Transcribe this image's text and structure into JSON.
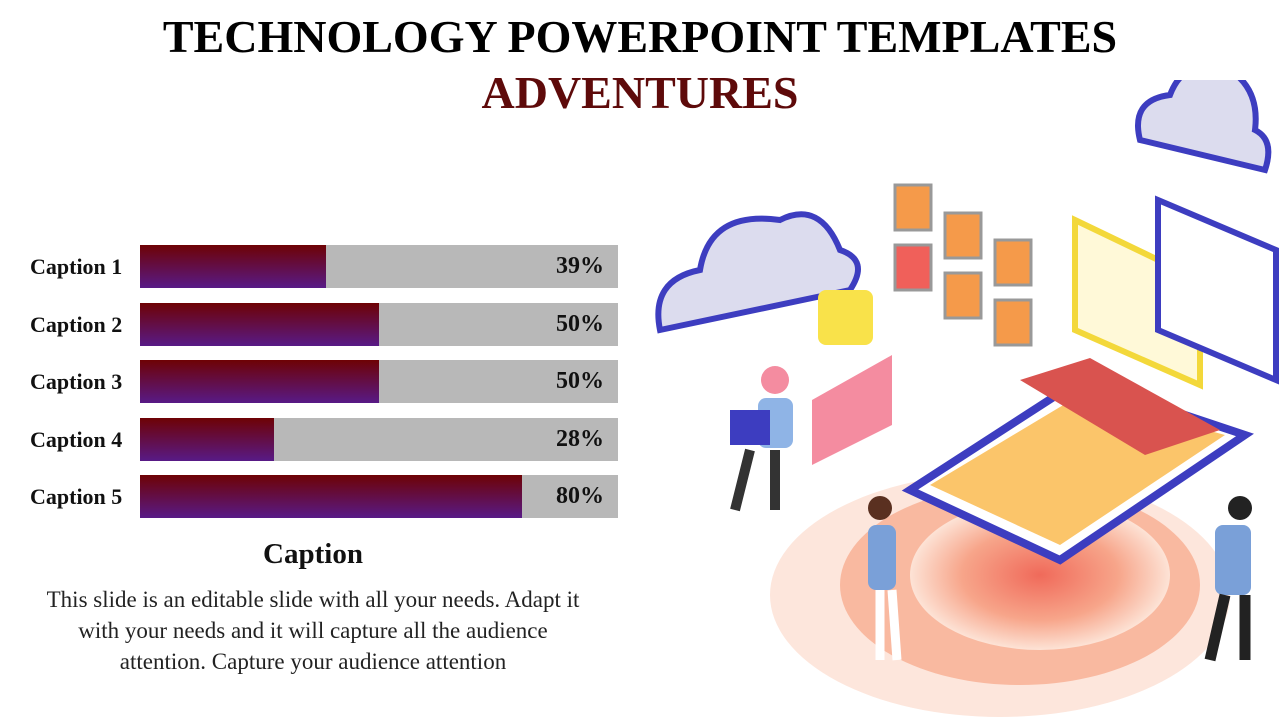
{
  "slide": {
    "title_line1": "TECHNOLOGY POWERPOINT TEMPLATES",
    "title_line2": "ADVENTURES",
    "caption_heading": "Caption",
    "caption_body": "This slide is an editable slide with all your needs. Adapt it with your needs and it will capture all the audience attention. Capture your audience attention"
  },
  "colors": {
    "title": "#000000",
    "subtitle": "#5e0a0a",
    "bar_top": "#6e0205",
    "bar_bottom": "#581a87",
    "track": "#b8b8b8"
  },
  "chart_data": {
    "type": "bar",
    "orientation": "horizontal",
    "categories": [
      "Caption 1",
      "Caption 2",
      "Caption 3",
      "Caption 4",
      "Caption 5"
    ],
    "values": [
      39,
      50,
      50,
      28,
      80
    ],
    "labels": [
      "39%",
      "50%",
      "50%",
      "28%",
      "80%"
    ],
    "xlim": [
      0,
      100
    ],
    "grid": false
  },
  "illustration": {
    "icon": "isometric-technology-smartphone-cloud-people"
  }
}
